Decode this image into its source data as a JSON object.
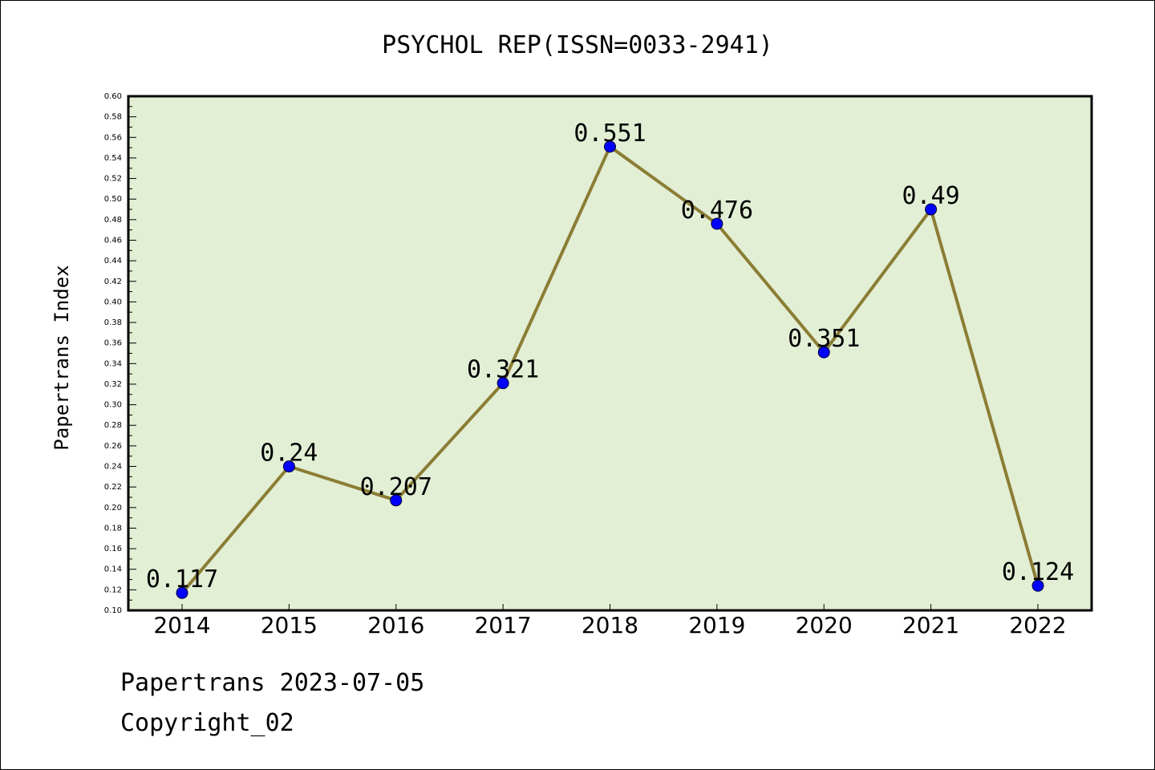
{
  "chart_data": {
    "type": "line",
    "title": "PSYCHOL REP(ISSN=0033-2941)",
    "xlabel": "",
    "ylabel": "Papertrans Index",
    "categories": [
      "2014",
      "2015",
      "2016",
      "2017",
      "2018",
      "2019",
      "2020",
      "2021",
      "2022"
    ],
    "series": [
      {
        "values": [
          0.117,
          0.24,
          0.207,
          0.321,
          0.551,
          0.476,
          0.351,
          0.49,
          0.124
        ],
        "labels": [
          "0.117",
          "0.24",
          "0.207",
          "0.321",
          "0.551",
          "0.476",
          "0.351",
          "0.49",
          "0.124"
        ]
      }
    ],
    "ylim": [
      0.1,
      0.6
    ],
    "ytick_labels": [
      "0.10",
      "0.12",
      "0.14",
      "0.16",
      "0.18",
      "0.20",
      "0.22",
      "0.24",
      "0.26",
      "0.28",
      "0.30",
      "0.32",
      "0.34",
      "0.36",
      "0.38",
      "0.40",
      "0.42",
      "0.44",
      "0.46",
      "0.48",
      "0.50",
      "0.52",
      "0.54",
      "0.56",
      "0.58",
      "0.60"
    ],
    "grid": false,
    "colors": {
      "plot_background": "#e2efd5",
      "line": "#8b7d35",
      "marker": "#0000ff",
      "axes": "#000000"
    }
  },
  "footer": {
    "date_line": "Papertrans 2023-07-05",
    "copyright": "Copyright_02"
  }
}
